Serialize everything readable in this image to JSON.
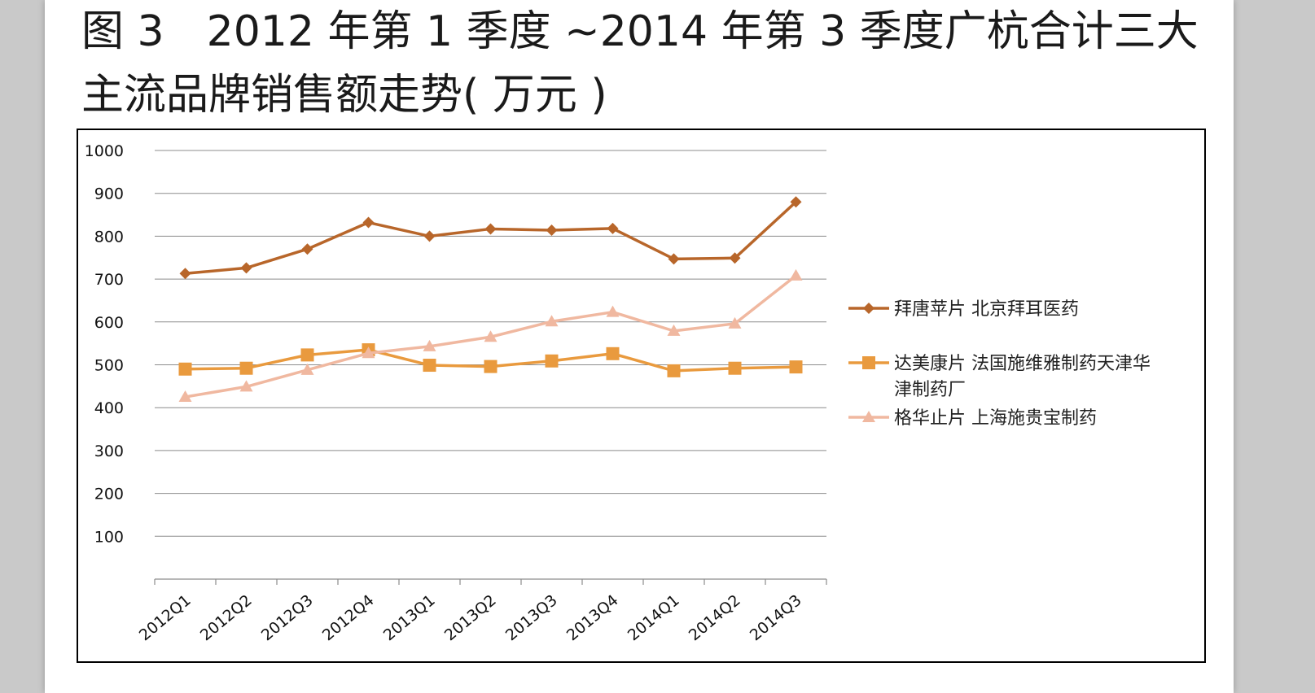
{
  "title": "图 3　2012 年第 1 季度 ~2014 年第 3 季度广杭合计三大主流品牌销售额走势( 万元 )",
  "chart_data": {
    "type": "line",
    "title": "图 3　2012 年第 1 季度 ~2014 年第 3 季度广杭合计三大主流品牌销售额走势( 万元 )",
    "categories": [
      "2012Q1",
      "2012Q2",
      "2012Q3",
      "2012Q4",
      "2013Q1",
      "2013Q2",
      "2013Q3",
      "2013Q4",
      "2014Q1",
      "2014Q2",
      "2014Q3"
    ],
    "yticks": [
      100,
      200,
      300,
      400,
      500,
      600,
      700,
      800,
      900,
      1000
    ],
    "ylim": [
      0,
      1000
    ],
    "grid": true,
    "legend_position": "right",
    "series": [
      {
        "name": "拜唐苹片 北京拜耳医药",
        "legend_lines": [
          "拜唐苹片 北京拜耳医药"
        ],
        "color": "#b8662a",
        "marker": "diamond",
        "values": [
          713,
          726,
          770,
          832,
          800,
          817,
          814,
          818,
          747,
          749,
          880
        ]
      },
      {
        "name": "达美康片 法国施维雅制药天津华津制药厂",
        "legend_lines": [
          "达美康片 法国施维雅制药天津华",
          "津制药厂"
        ],
        "color": "#e99a3e",
        "marker": "square",
        "values": [
          490,
          492,
          523,
          535,
          499,
          496,
          509,
          526,
          486,
          492,
          495
        ]
      },
      {
        "name": "格华止片 上海施贵宝制药",
        "legend_lines": [
          "格华止片 上海施贵宝制药"
        ],
        "color": "#f0b8a0",
        "marker": "triangle",
        "values": [
          425,
          449,
          488,
          527,
          543,
          565,
          601,
          623,
          579,
          596,
          708
        ]
      }
    ]
  }
}
